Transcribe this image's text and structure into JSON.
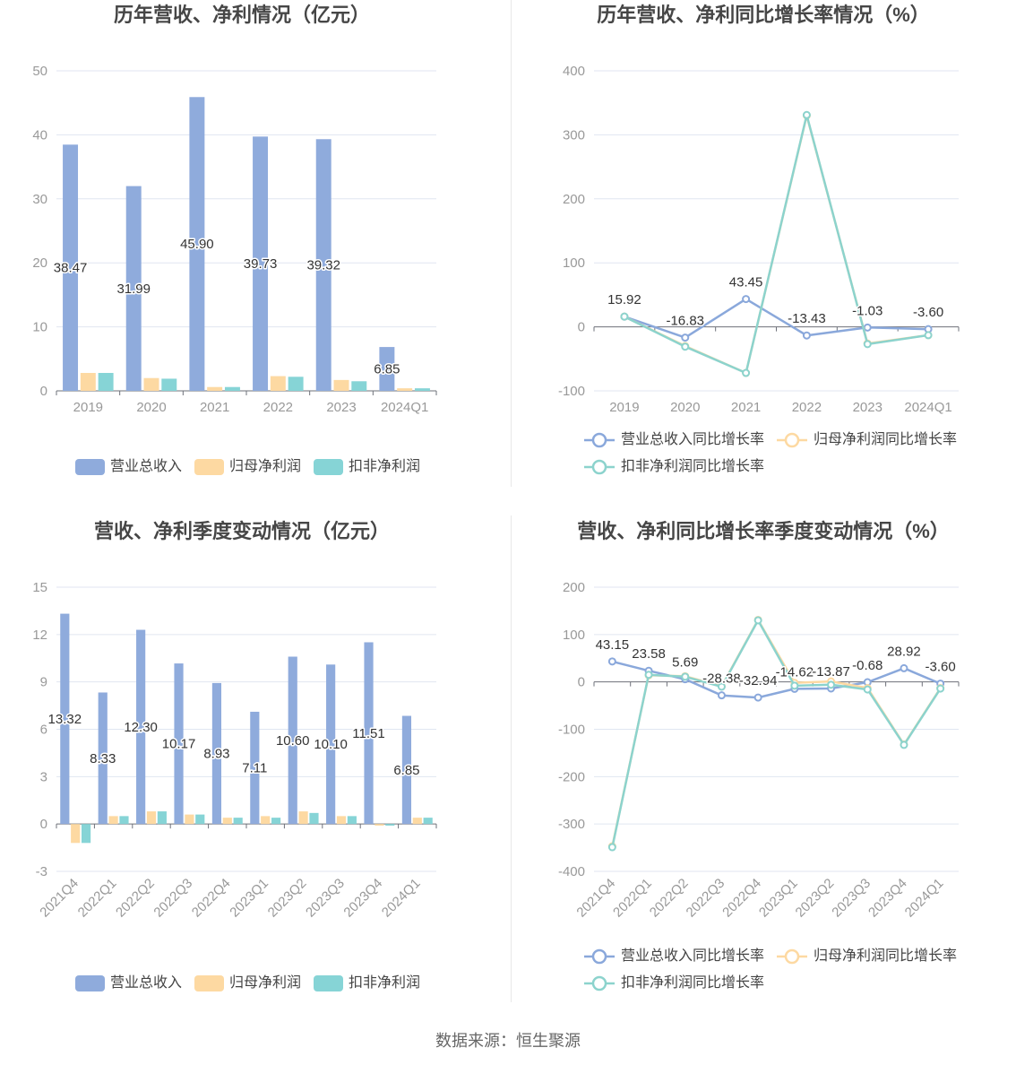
{
  "footer": {
    "source": "数据来源：恒生聚源"
  },
  "chart_data": [
    {
      "type": "bar",
      "title": "历年营收、净利情况（亿元）",
      "categories": [
        "2019",
        "2020",
        "2021",
        "2022",
        "2023",
        "2024Q1"
      ],
      "series": [
        {
          "name": "营业总收入",
          "values": [
            38.47,
            31.99,
            45.9,
            39.73,
            39.32,
            6.85
          ],
          "color": "#8fabdc",
          "data_labels": true
        },
        {
          "name": "归母净利润",
          "values": [
            2.8,
            2.0,
            0.6,
            2.3,
            1.7,
            0.4
          ],
          "color": "#fdd9a2",
          "data_labels": false
        },
        {
          "name": "扣非净利润",
          "values": [
            2.8,
            1.9,
            0.6,
            2.2,
            1.5,
            0.4
          ],
          "color": "#86d4d6",
          "data_labels": false
        }
      ],
      "ylim": [
        0,
        50
      ],
      "yticks": [
        0,
        10,
        20,
        30,
        40,
        50
      ],
      "grid": true,
      "legend": "bottom"
    },
    {
      "type": "line",
      "title": "历年营收、净利同比增长率情况（%）",
      "categories": [
        "2019",
        "2020",
        "2021",
        "2022",
        "2023",
        "2024Q1"
      ],
      "series": [
        {
          "name": "营业总收入同比增长率",
          "values": [
            15.92,
            -16.83,
            43.45,
            -13.43,
            -1.03,
            -3.6
          ],
          "color": "#8aa8db",
          "data_labels": true
        },
        {
          "name": "归母净利润同比增长率",
          "values": [
            16,
            -30,
            -72,
            330,
            -26,
            -13
          ],
          "color": "#fdd9a2",
          "data_labels": false
        },
        {
          "name": "扣非净利润同比增长率",
          "values": [
            16,
            -31,
            -72,
            331,
            -27,
            -13
          ],
          "color": "#8cd3cd",
          "data_labels": false
        }
      ],
      "ylim": [
        -100,
        400
      ],
      "yticks": [
        -100,
        0,
        100,
        200,
        300,
        400
      ],
      "grid": true,
      "legend": "bottom"
    },
    {
      "type": "bar",
      "title": "营收、净利季度变动情况（亿元）",
      "categories": [
        "2021Q4",
        "2022Q1",
        "2022Q2",
        "2022Q3",
        "2022Q4",
        "2023Q1",
        "2023Q2",
        "2023Q3",
        "2023Q4",
        "2024Q1"
      ],
      "series": [
        {
          "name": "营业总收入",
          "values": [
            13.32,
            8.33,
            12.3,
            10.17,
            8.93,
            7.11,
            10.6,
            10.1,
            11.51,
            6.85
          ],
          "color": "#8fabdc",
          "data_labels": true
        },
        {
          "name": "归母净利润",
          "values": [
            -1.2,
            0.5,
            0.8,
            0.6,
            0.4,
            0.5,
            0.8,
            0.5,
            -0.1,
            0.4
          ],
          "color": "#fdd9a2",
          "data_labels": false
        },
        {
          "name": "扣非净利润",
          "values": [
            -1.2,
            0.5,
            0.8,
            0.6,
            0.4,
            0.4,
            0.7,
            0.5,
            -0.1,
            0.4
          ],
          "color": "#86d4d6",
          "data_labels": false
        }
      ],
      "ylim": [
        -3,
        15
      ],
      "yticks": [
        -3,
        0,
        3,
        6,
        9,
        12,
        15
      ],
      "grid": true,
      "legend": "bottom"
    },
    {
      "type": "line",
      "title": "营收、净利同比增长率季度变动情况（%）",
      "categories": [
        "2021Q4",
        "2022Q1",
        "2022Q2",
        "2022Q3",
        "2022Q4",
        "2023Q1",
        "2023Q2",
        "2023Q3",
        "2023Q4",
        "2024Q1"
      ],
      "series": [
        {
          "name": "营业总收入同比增长率",
          "values": [
            43.15,
            23.58,
            5.69,
            -28.38,
            -32.94,
            -14.62,
            -13.87,
            -0.68,
            28.92,
            -3.6
          ],
          "color": "#8aa8db",
          "data_labels": true
        },
        {
          "name": "归母净利润同比增长率",
          "values": [
            -347,
            14,
            12,
            -9,
            131,
            -2,
            1,
            -13,
            -132,
            -13
          ],
          "color": "#fdd9a2",
          "data_labels": false
        },
        {
          "name": "扣非净利润同比增长率",
          "values": [
            -349,
            15,
            11,
            -10,
            130,
            -8,
            -6,
            -16,
            -133,
            -14
          ],
          "color": "#8cd3cd",
          "data_labels": false
        }
      ],
      "ylim": [
        -400,
        200
      ],
      "yticks": [
        -400,
        -300,
        -200,
        -100,
        0,
        100,
        200
      ],
      "grid": true,
      "legend": "bottom"
    }
  ]
}
